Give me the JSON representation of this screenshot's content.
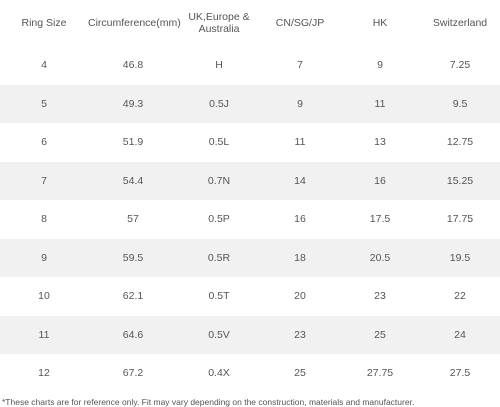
{
  "table": {
    "headers": [
      "Ring Size",
      "Circumference(mm)",
      "UK,Europe & Australia",
      "CN/SG/JP",
      "HK",
      "Switzerland"
    ],
    "rows": [
      [
        "4",
        "46.8",
        "H",
        "7",
        "9",
        "7.25"
      ],
      [
        "5",
        "49.3",
        "0.5J",
        "9",
        "11",
        "9.5"
      ],
      [
        "6",
        "51.9",
        "0.5L",
        "11",
        "13",
        "12.75"
      ],
      [
        "7",
        "54.4",
        "0.7N",
        "14",
        "16",
        "15.25"
      ],
      [
        "8",
        "57",
        "0.5P",
        "16",
        "17.5",
        "17.75"
      ],
      [
        "9",
        "59.5",
        "0.5R",
        "18",
        "20.5",
        "19.5"
      ],
      [
        "10",
        "62.1",
        "0.5T",
        "20",
        "23",
        "22"
      ],
      [
        "11",
        "64.6",
        "0.5V",
        "23",
        "25",
        "24"
      ],
      [
        "12",
        "67.2",
        "0.4X",
        "25",
        "27.75",
        "27.5"
      ]
    ]
  },
  "footnote": "*These charts are for reference only. Fit may vary depending on the construction, materials and manufacturer."
}
